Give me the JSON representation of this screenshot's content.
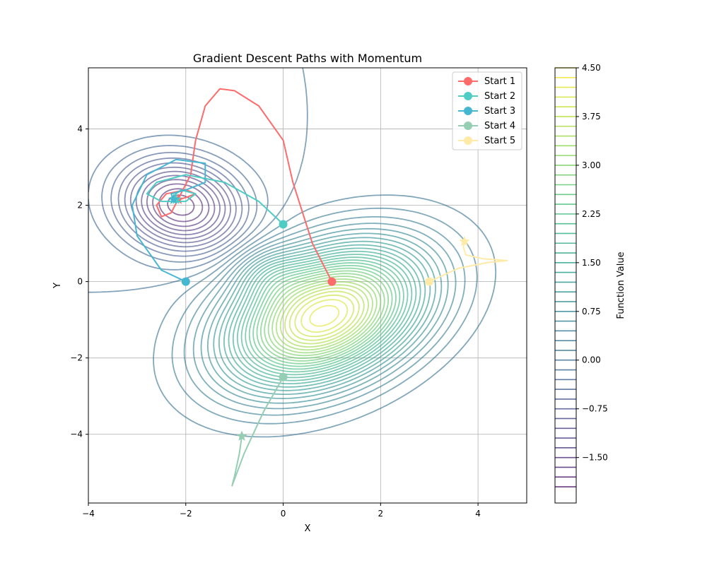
{
  "chart_data": {
    "type": "contour",
    "title": "Gradient Descent Paths with Momentum",
    "xlabel": "X",
    "ylabel": "Y",
    "xlim": [
      -4,
      5
    ],
    "ylim": [
      -5.8,
      5.6
    ],
    "xticks": [
      -4,
      -2,
      0,
      2,
      4
    ],
    "yticks": [
      -4,
      -2,
      0,
      2,
      4
    ],
    "xtick_labels": [
      "−4",
      "−2",
      "0",
      "2",
      "4"
    ],
    "ytick_labels": [
      "−4",
      "−2",
      "0",
      "2",
      "4"
    ],
    "grid": true,
    "legend_position": "top-right",
    "contour": {
      "colormap": "viridis",
      "levels": [
        -1.95,
        -1.8,
        -1.65,
        -1.5,
        -1.35,
        -1.2,
        -1.05,
        -0.9,
        -0.75,
        -0.6,
        -0.45,
        -0.3,
        -0.15,
        0,
        0.15,
        0.3,
        0.45,
        0.6,
        0.75,
        0.9,
        1.05,
        1.2,
        1.35,
        1.5,
        1.65,
        1.8,
        1.95,
        2.1,
        2.25,
        2.4,
        2.55,
        2.7,
        2.85,
        3.0,
        3.15,
        3.3,
        3.45,
        3.6,
        3.75,
        3.9,
        4.05,
        4.2,
        4.35,
        4.5
      ],
      "minimum": {
        "center": [
          -2.1,
          2.0
        ],
        "depth": -1.9
      },
      "maximum": {
        "center": [
          0.85,
          -0.9
        ],
        "height": 4.3
      }
    },
    "colorbar": {
      "label": "Function Value",
      "min": -2.2,
      "max": 4.5,
      "ticks": [
        4.5,
        3.75,
        3.0,
        2.25,
        1.5,
        0.75,
        0.0,
        -0.75,
        -1.5
      ],
      "tick_labels": [
        "4.50",
        "3.75",
        "3.00",
        "2.25",
        "1.50",
        "0.75",
        "0.00",
        "−0.75",
        "−1.50"
      ]
    },
    "series": [
      {
        "name": "Start 1",
        "color": "#ff6b6b",
        "start": [
          1,
          0
        ],
        "path": [
          [
            1,
            0
          ],
          [
            0.6,
            1.0
          ],
          [
            0.2,
            2.6
          ],
          [
            0,
            3.7
          ],
          [
            -0.5,
            4.6
          ],
          [
            -1.0,
            5.0
          ],
          [
            -1.3,
            5.05
          ],
          [
            -1.6,
            4.6
          ],
          [
            -1.8,
            3.7
          ],
          [
            -1.9,
            2.8
          ],
          [
            -2.1,
            2.3
          ],
          [
            -2.3,
            1.8
          ],
          [
            -2.5,
            1.7
          ],
          [
            -2.6,
            2.0
          ],
          [
            -2.4,
            2.3
          ],
          [
            -2.0,
            2.4
          ],
          [
            -1.8,
            2.3
          ],
          [
            -2.0,
            2.2
          ],
          [
            -2.15,
            2.15
          ]
        ],
        "end": [
          -2.15,
          2.15
        ]
      },
      {
        "name": "Start 2",
        "color": "#4ecdc4",
        "start": [
          0,
          1.5
        ],
        "path": [
          [
            0,
            1.5
          ],
          [
            -0.5,
            2.1
          ],
          [
            -1.2,
            2.6
          ],
          [
            -2.0,
            2.8
          ],
          [
            -2.6,
            2.6
          ],
          [
            -2.8,
            2.3
          ],
          [
            -2.5,
            2.1
          ],
          [
            -2.0,
            2.1
          ],
          [
            -1.8,
            2.3
          ],
          [
            -2.1,
            2.4
          ],
          [
            -2.3,
            2.2
          ],
          [
            -2.2,
            2.15
          ]
        ],
        "end": [
          -2.2,
          2.15
        ]
      },
      {
        "name": "Start 3",
        "color": "#45b7d1",
        "start": [
          -2,
          0
        ],
        "path": [
          [
            -2,
            0
          ],
          [
            -2.5,
            0.3
          ],
          [
            -3.0,
            1.2
          ],
          [
            -3.1,
            2.0
          ],
          [
            -2.8,
            2.8
          ],
          [
            -2.2,
            3.2
          ],
          [
            -1.6,
            3.1
          ],
          [
            -1.6,
            2.6
          ],
          [
            -2.0,
            2.4
          ],
          [
            -2.3,
            2.3
          ],
          [
            -2.25,
            2.15
          ]
        ],
        "end": [
          -2.25,
          2.15
        ]
      },
      {
        "name": "Start 4",
        "color": "#96ceb4",
        "start": [
          0,
          -2.5
        ],
        "path": [
          [
            0,
            -2.5
          ],
          [
            -0.4,
            -3.4
          ],
          [
            -0.8,
            -4.5
          ],
          [
            -1.05,
            -5.35
          ],
          [
            -1.0,
            -5.1
          ],
          [
            -0.9,
            -4.5
          ],
          [
            -0.85,
            -4.05
          ]
        ],
        "end": [
          -0.85,
          -4.05
        ]
      },
      {
        "name": "Start 5",
        "color": "#ffeaa7",
        "start": [
          3,
          0
        ],
        "path": [
          [
            3,
            0
          ],
          [
            3.6,
            0.35
          ],
          [
            4.2,
            0.5
          ],
          [
            4.6,
            0.55
          ],
          [
            4.1,
            0.6
          ],
          [
            3.75,
            0.7
          ],
          [
            3.7,
            0.9
          ],
          [
            3.72,
            1.05
          ]
        ],
        "end": [
          3.72,
          1.05
        ]
      }
    ]
  }
}
